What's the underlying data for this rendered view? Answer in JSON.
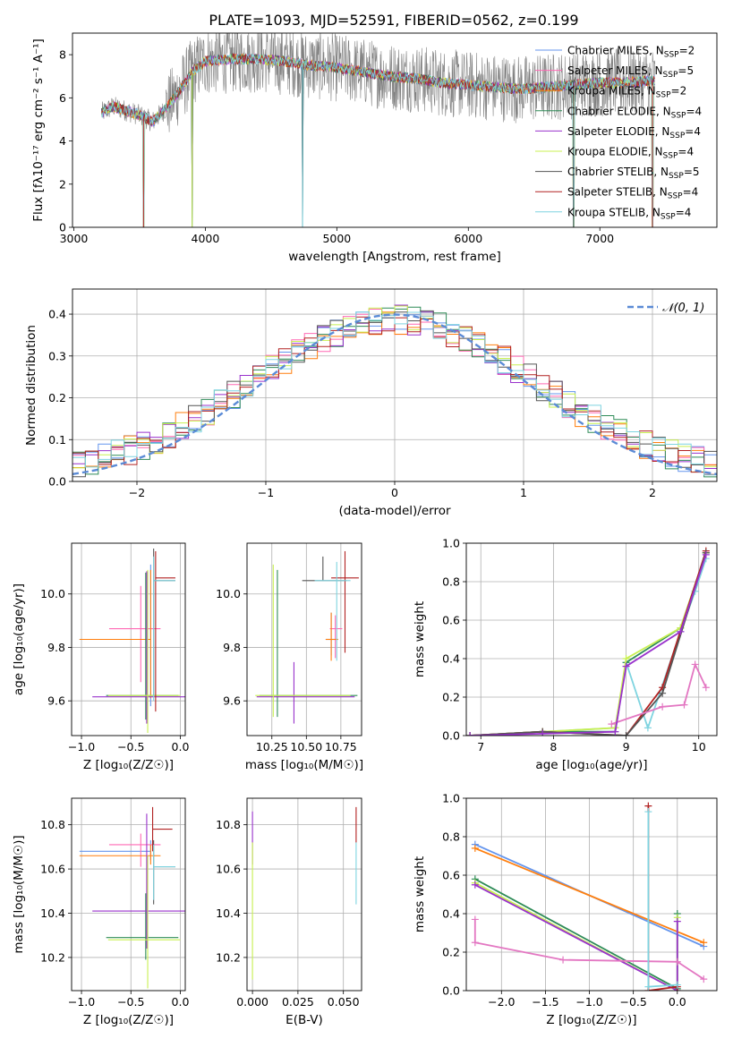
{
  "figure": {
    "title": "PLATE=1093, MJD=52591, FIBERID=0562, z=0.199"
  },
  "colors": {
    "chabrier_miles": "#6495ed",
    "salpeter_miles": "#ff69b4",
    "kroupa_miles": "#ff7f0e",
    "chabrier_elodie": "#2e8b57",
    "salpeter_elodie": "#9932cc",
    "kroupa_elodie": "#c8f051",
    "chabrier_stelib": "#555555",
    "salpeter_stelib": "#b22222",
    "kroupa_stelib": "#7fd4e0",
    "salpeter_weight": "#e377c2",
    "data": "#808080",
    "gaussian": "#5b8bd6"
  },
  "chart_data": [
    {
      "id": "spectrum",
      "type": "line",
      "xlabel": "wavelength [Angstrom, rest frame]",
      "ylabel": "Flux [fλ10⁻¹⁷ erg cm⁻² s⁻¹ A⁻¹]",
      "xlim": [
        2990,
        7890
      ],
      "ylim": [
        0,
        9
      ],
      "xticks": [
        3000,
        4000,
        5000,
        6000,
        7000
      ],
      "yticks": [
        0,
        2,
        4,
        6,
        8
      ],
      "legend_position": "right",
      "legend": [
        {
          "base": "Chabrier MILES, N",
          "sub": "SSP",
          "tail": "=2",
          "color_key": "chabrier_miles"
        },
        {
          "base": "Salpeter MILES, N",
          "sub": "SSP",
          "tail": "=5",
          "color_key": "salpeter_miles"
        },
        {
          "base": "Kroupa MILES, N",
          "sub": "SSP",
          "tail": "=2",
          "color_key": "kroupa_miles"
        },
        {
          "base": "Chabrier ELODIE, N",
          "sub": "SSP",
          "tail": "=4",
          "color_key": "chabrier_elodie"
        },
        {
          "base": "Salpeter ELODIE, N",
          "sub": "SSP",
          "tail": "=4",
          "color_key": "salpeter_elodie"
        },
        {
          "base": "Kroupa ELODIE, N",
          "sub": "SSP",
          "tail": "=4",
          "color_key": "kroupa_elodie"
        },
        {
          "base": "Chabrier STELIB, N",
          "sub": "SSP",
          "tail": "=5",
          "color_key": "chabrier_stelib"
        },
        {
          "base": "Salpeter STELIB, N",
          "sub": "SSP",
          "tail": "=4",
          "color_key": "salpeter_stelib"
        },
        {
          "base": "Kroupa STELIB, N",
          "sub": "SSP",
          "tail": "=4",
          "color_key": "kroupa_stelib"
        }
      ],
      "continuum": [
        [
          3210,
          5.3
        ],
        [
          3300,
          5.6
        ],
        [
          3400,
          5.4
        ],
        [
          3500,
          5.2
        ],
        [
          3600,
          4.9
        ],
        [
          3700,
          5.5
        ],
        [
          3800,
          6.3
        ],
        [
          3900,
          7.2
        ],
        [
          4000,
          7.7
        ],
        [
          4200,
          7.8
        ],
        [
          4400,
          7.8
        ],
        [
          4600,
          7.7
        ],
        [
          4800,
          7.5
        ],
        [
          5000,
          7.4
        ],
        [
          5200,
          7.2
        ],
        [
          5400,
          7.0
        ],
        [
          5600,
          6.9
        ],
        [
          5800,
          6.7
        ],
        [
          6000,
          6.6
        ],
        [
          6200,
          6.5
        ],
        [
          6400,
          6.4
        ],
        [
          6600,
          6.5
        ],
        [
          6800,
          6.6
        ],
        [
          7000,
          6.7
        ],
        [
          7200,
          6.7
        ],
        [
          7400,
          6.8
        ]
      ],
      "model_dips": [
        [
          3530,
          0
        ],
        [
          3900,
          0
        ],
        [
          4740,
          0
        ],
        [
          6800,
          0
        ],
        [
          7400,
          0
        ]
      ]
    },
    {
      "id": "residual-hist",
      "type": "line",
      "xlabel": "(data-model)/error",
      "ylabel": "Normed distribution",
      "xlim": [
        -2.5,
        2.5
      ],
      "ylim": [
        0,
        0.46
      ],
      "xticks": [
        -2,
        -1,
        0,
        1,
        2
      ],
      "yticks": [
        0,
        0.1,
        0.2,
        0.3,
        0.4
      ],
      "gaussian_label": "𝒩(0, 1)",
      "bin_width": 0.1
    },
    {
      "id": "age-vs-metallicity",
      "type": "scatter",
      "xlabel": "Z [log₁₀(Z/Z☉)]",
      "ylabel": "age  [log₁₀(age/yr)]",
      "xlim": [
        -1.1,
        0.05
      ],
      "ylim": [
        9.47,
        10.19
      ],
      "xticks": [
        -1.0,
        -0.5,
        0.0
      ],
      "yticks": [
        9.6,
        9.8,
        10.0
      ],
      "points": [
        {
          "color_key": "chabrier_miles",
          "x": -0.3,
          "y": 9.83,
          "xerr": [
            0.72,
            0.0
          ],
          "yerr": [
            0.25,
            0.28
          ]
        },
        {
          "color_key": "salpeter_miles",
          "x": -0.4,
          "y": 9.87,
          "xerr": [
            0.32,
            0.2
          ],
          "yerr": [
            0.2,
            0.16
          ]
        },
        {
          "color_key": "kroupa_miles",
          "x": -0.3,
          "y": 9.83,
          "xerr": [
            0.72,
            0.0
          ],
          "yerr": [
            0.22,
            0.26
          ]
        },
        {
          "color_key": "chabrier_elodie",
          "x": -0.35,
          "y": 9.62,
          "xerr": [
            0.4,
            0.33
          ],
          "yerr": [
            0.09,
            0.46
          ]
        },
        {
          "color_key": "salpeter_elodie",
          "x": -0.34,
          "y": 9.615,
          "xerr": [
            0.55,
            0.4
          ],
          "yerr": [
            0.1,
            0.47
          ]
        },
        {
          "color_key": "kroupa_elodie",
          "x": -0.33,
          "y": 9.62,
          "xerr": [
            0.4,
            0.33
          ],
          "yerr": [
            0.14,
            0.47
          ]
        },
        {
          "color_key": "chabrier_stelib",
          "x": -0.27,
          "y": 10.05,
          "xerr": [
            0.0,
            0.22
          ],
          "yerr": [
            0.43,
            0.12
          ]
        },
        {
          "color_key": "salpeter_stelib",
          "x": -0.25,
          "y": 10.06,
          "xerr": [
            0.0,
            0.2
          ],
          "yerr": [
            0.5,
            0.1
          ]
        },
        {
          "color_key": "kroupa_stelib",
          "x": -0.27,
          "y": 10.05,
          "xerr": [
            0.0,
            0.22
          ],
          "yerr": [
            0.45,
            0.09
          ]
        }
      ]
    },
    {
      "id": "age-vs-mass",
      "type": "scatter",
      "xlabel": "mass [log₁₀(M/M☉)]",
      "ylabel": "",
      "xlim": [
        10.07,
        10.9
      ],
      "ylim": [
        9.47,
        10.19
      ],
      "xticks": [
        10.25,
        10.5,
        10.75
      ],
      "yticks": [
        9.6,
        9.8,
        10.0
      ],
      "points": [
        {
          "color_key": "chabrier_miles",
          "x": 10.68,
          "y": 9.83,
          "xerr": [
            0.04,
            0.05
          ],
          "yerr": [
            0.06,
            0.1
          ]
        },
        {
          "color_key": "salpeter_miles",
          "x": 10.71,
          "y": 9.87,
          "xerr": [
            0.04,
            0.05
          ],
          "yerr": [
            0.11,
            0.05
          ]
        },
        {
          "color_key": "kroupa_miles",
          "x": 10.68,
          "y": 9.83,
          "xerr": [
            0.04,
            0.05
          ],
          "yerr": [
            0.08,
            0.1
          ]
        },
        {
          "color_key": "chabrier_elodie",
          "x": 10.29,
          "y": 9.62,
          "xerr": [
            0.13,
            0.58
          ],
          "yerr": [
            0.08,
            0.47
          ]
        },
        {
          "color_key": "salpeter_elodie",
          "x": 10.41,
          "y": 9.615,
          "xerr": [
            0.27,
            0.44
          ],
          "yerr": [
            0.1,
            0.13
          ]
        },
        {
          "color_key": "kroupa_elodie",
          "x": 10.26,
          "y": 9.62,
          "xerr": [
            0.13,
            0.56
          ],
          "yerr": [
            0.08,
            0.49
          ]
        },
        {
          "color_key": "chabrier_stelib",
          "x": 10.62,
          "y": 10.05,
          "xerr": [
            0.15,
            0.17
          ],
          "yerr": [
            0.0,
            0.09
          ]
        },
        {
          "color_key": "salpeter_stelib",
          "x": 10.78,
          "y": 10.06,
          "xerr": [
            0.1,
            0.1
          ],
          "yerr": [
            0.28,
            0.1
          ]
        },
        {
          "color_key": "kroupa_stelib",
          "x": 10.72,
          "y": 10.05,
          "xerr": [
            0.16,
            0.1
          ],
          "yerr": [
            0.3,
            0.07
          ]
        }
      ]
    },
    {
      "id": "weight-vs-age",
      "type": "line",
      "xlabel": "age  [log₁₀(age/yr)]",
      "ylabel": "mass weight",
      "xlim": [
        6.8,
        10.25
      ],
      "ylim": [
        0,
        1
      ],
      "xticks": [
        7,
        8,
        9,
        10
      ],
      "yticks": [
        0.0,
        0.2,
        0.4,
        0.6,
        0.8,
        1.0
      ],
      "series": [
        {
          "color_key": "kroupa_stelib",
          "x": [
            6.85,
            7.85,
            8.85,
            9.0,
            9.3,
            9.75,
            9.95,
            10.1
          ],
          "y": [
            0.0,
            0.02,
            0.04,
            0.38,
            0.04,
            0.54,
            0.75,
            0.92
          ]
        },
        {
          "color_key": "chabrier_elodie",
          "x": [
            6.85,
            7.85,
            8.85,
            9.0,
            9.75,
            10.1
          ],
          "y": [
            0.0,
            0.02,
            0.02,
            0.38,
            0.56,
            0.95
          ]
        },
        {
          "color_key": "kroupa_elodie",
          "x": [
            6.85,
            7.85,
            8.85,
            9.0,
            9.75,
            10.1
          ],
          "y": [
            0.0,
            0.02,
            0.04,
            0.4,
            0.56,
            0.95
          ]
        },
        {
          "color_key": "salpeter_stelib",
          "x": [
            6.85,
            7.85,
            9.0,
            9.5,
            10.1
          ],
          "y": [
            0.0,
            0.02,
            0.0,
            0.25,
            0.96
          ]
        },
        {
          "color_key": "chabrier_stelib",
          "x": [
            6.85,
            7.85,
            9.0,
            9.5,
            10.1
          ],
          "y": [
            0.0,
            0.02,
            0.0,
            0.22,
            0.95
          ]
        },
        {
          "color_key": "salpeter_weight",
          "x": [
            8.8,
            9.5,
            9.8,
            9.95,
            10.1
          ],
          "y": [
            0.06,
            0.15,
            0.16,
            0.37,
            0.25
          ]
        },
        {
          "color_key": "salpeter_elodie",
          "x": [
            6.85,
            7.85,
            8.85,
            9.0,
            9.75,
            10.1
          ],
          "y": [
            0.0,
            0.01,
            0.02,
            0.36,
            0.54,
            0.94
          ]
        }
      ]
    },
    {
      "id": "mass-vs-metallicity",
      "type": "scatter",
      "xlabel": "Z [log₁₀(Z/Z☉)]",
      "ylabel": "mass [log₁₀(M/M☉)]",
      "xlim": [
        -1.1,
        0.05
      ],
      "ylim": [
        10.05,
        10.92
      ],
      "xticks": [
        -1.0,
        -0.5,
        0.0
      ],
      "yticks": [
        10.2,
        10.4,
        10.6,
        10.8
      ],
      "points": [
        {
          "color_key": "chabrier_miles",
          "x": -0.3,
          "y": 10.68,
          "xerr": [
            0.72,
            0.0
          ],
          "yerr": [
            0.04,
            0.05
          ]
        },
        {
          "color_key": "salpeter_miles",
          "x": -0.4,
          "y": 10.71,
          "xerr": [
            0.32,
            0.2
          ],
          "yerr": [
            0.1,
            0.05
          ]
        },
        {
          "color_key": "kroupa_miles",
          "x": -0.3,
          "y": 10.66,
          "xerr": [
            0.72,
            0.1
          ],
          "yerr": [
            0.04,
            0.05
          ]
        },
        {
          "color_key": "chabrier_elodie",
          "x": -0.35,
          "y": 10.29,
          "xerr": [
            0.4,
            0.33
          ],
          "yerr": [
            0.1,
            0.2
          ]
        },
        {
          "color_key": "salpeter_elodie",
          "x": -0.34,
          "y": 10.41,
          "xerr": [
            0.55,
            0.42
          ],
          "yerr": [
            0.17,
            0.44
          ]
        },
        {
          "color_key": "kroupa_elodie",
          "x": -0.33,
          "y": 10.28,
          "xerr": [
            0.4,
            0.33
          ],
          "yerr": [
            0.22,
            0.38
          ]
        },
        {
          "color_key": "chabrier_stelib",
          "x": -0.27,
          "y": 10.61,
          "xerr": [
            0.0,
            0.22
          ],
          "yerr": [
            0.17,
            0.12
          ]
        },
        {
          "color_key": "salpeter_stelib",
          "x": -0.28,
          "y": 10.78,
          "xerr": [
            0.0,
            0.2
          ],
          "yerr": [
            0.1,
            0.1
          ]
        },
        {
          "color_key": "kroupa_stelib",
          "x": -0.27,
          "y": 10.61,
          "xerr": [
            0.0,
            0.22
          ],
          "yerr": [
            0.15,
            0.1
          ]
        }
      ]
    },
    {
      "id": "mass-vs-ebv",
      "type": "scatter",
      "xlabel": "E(B-V)",
      "ylabel": "",
      "xlim": [
        -0.003,
        0.06
      ],
      "ylim": [
        10.05,
        10.92
      ],
      "xticks": [
        0.0,
        0.025,
        0.05
      ],
      "yticks": [
        10.2,
        10.4,
        10.6,
        10.8
      ],
      "points": [
        {
          "color_key": "salpeter_elodie",
          "x": 0.0,
          "y": 10.72,
          "xerr": [
            0,
            0
          ],
          "yerr": [
            0.1,
            0.14
          ]
        },
        {
          "color_key": "kroupa_elodie",
          "x": 0.0,
          "y": 10.55,
          "xerr": [
            0,
            0
          ],
          "yerr": [
            0.45,
            0.17
          ]
        },
        {
          "color_key": "salpeter_stelib",
          "x": 0.057,
          "y": 10.72,
          "xerr": [
            0,
            0
          ],
          "yerr": [
            0.0,
            0.16
          ]
        },
        {
          "color_key": "kroupa_stelib",
          "x": 0.057,
          "y": 10.6,
          "xerr": [
            0,
            0
          ],
          "yerr": [
            0.16,
            0.12
          ]
        }
      ]
    },
    {
      "id": "weight-vs-metallicity",
      "type": "line",
      "xlabel": "Z [log₁₀(Z/Z☉)]",
      "ylabel": "mass weight",
      "xlim": [
        -2.4,
        0.45
      ],
      "ylim": [
        0,
        1
      ],
      "xticks": [
        -2.0,
        -1.5,
        -1.0,
        -0.5,
        0.0
      ],
      "yticks": [
        0.0,
        0.2,
        0.4,
        0.6,
        0.8,
        1.0
      ],
      "series": [
        {
          "color_key": "chabrier_miles",
          "x": [
            -2.3,
            0.3
          ],
          "y": [
            0.76,
            0.23
          ]
        },
        {
          "color_key": "kroupa_miles",
          "x": [
            -2.3,
            0.3
          ],
          "y": [
            0.74,
            0.25
          ]
        },
        {
          "color_key": "chabrier_elodie",
          "x": [
            -2.3,
            0.0,
            0.0
          ],
          "y": [
            0.58,
            0.01,
            0.4
          ]
        },
        {
          "color_key": "kroupa_elodie",
          "x": [
            -2.3,
            0.0,
            0.0
          ],
          "y": [
            0.56,
            0.0,
            0.38
          ]
        },
        {
          "color_key": "salpeter_elodie",
          "x": [
            -2.3,
            0.0,
            0.0
          ],
          "y": [
            0.55,
            0.0,
            0.36
          ]
        },
        {
          "color_key": "salpeter_weight",
          "x": [
            -2.3,
            -2.3,
            -1.3,
            0.0,
            0.3
          ],
          "y": [
            0.37,
            0.25,
            0.16,
            0.15,
            0.06
          ]
        },
        {
          "color_key": "salpeter_stelib",
          "x": [
            -0.33,
            -0.33,
            0.0
          ],
          "y": [
            0.96,
            0.0,
            0.02
          ]
        },
        {
          "color_key": "kroupa_stelib",
          "x": [
            -0.33,
            -0.33,
            0.0
          ],
          "y": [
            0.93,
            0.02,
            0.03
          ]
        }
      ]
    }
  ]
}
